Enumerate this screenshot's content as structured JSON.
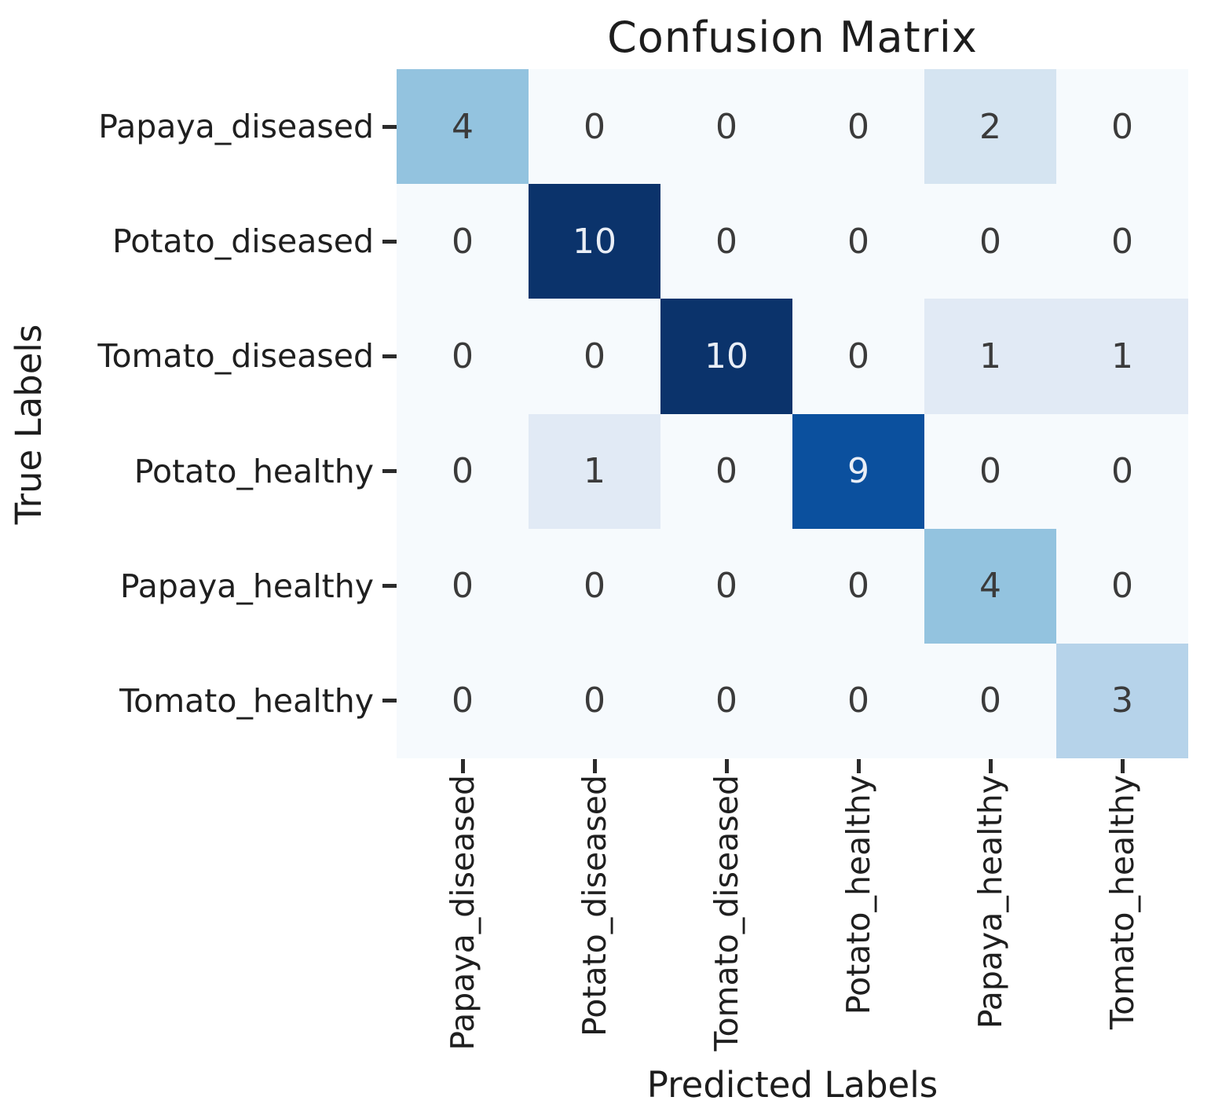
{
  "chart_data": {
    "type": "heatmap",
    "title": "Confusion Matrix",
    "xlabel": "Predicted Labels",
    "ylabel": "True Labels",
    "x_categories": [
      "Papaya_diseased",
      "Potato_diseased",
      "Tomato_diseased",
      "Potato_healthy",
      "Papaya_healthy",
      "Tomato_healthy"
    ],
    "y_categories": [
      "Papaya_diseased",
      "Potato_diseased",
      "Tomato_diseased",
      "Potato_healthy",
      "Papaya_healthy",
      "Tomato_healthy"
    ],
    "matrix": [
      [
        4,
        0,
        0,
        0,
        2,
        0
      ],
      [
        0,
        10,
        0,
        0,
        0,
        0
      ],
      [
        0,
        0,
        10,
        0,
        1,
        1
      ],
      [
        0,
        1,
        0,
        9,
        0,
        0
      ],
      [
        0,
        0,
        0,
        0,
        4,
        0
      ],
      [
        0,
        0,
        0,
        0,
        0,
        3
      ]
    ],
    "colormap": "Blues",
    "vmin": 0,
    "vmax": 10,
    "legend_position": "none",
    "grid": "off",
    "value_colors": {
      "0": "#f6fafd",
      "1": "#e1eaf5",
      "2": "#d5e4f1",
      "3": "#b6d3ea",
      "4": "#93c3df",
      "9": "#0b509e",
      "10": "#0b336b"
    },
    "dark_text_color": "#3b3b3b",
    "light_text_color": "#e9eef6",
    "light_text_min_value": 6,
    "tick_color": "#2b2b2b"
  }
}
